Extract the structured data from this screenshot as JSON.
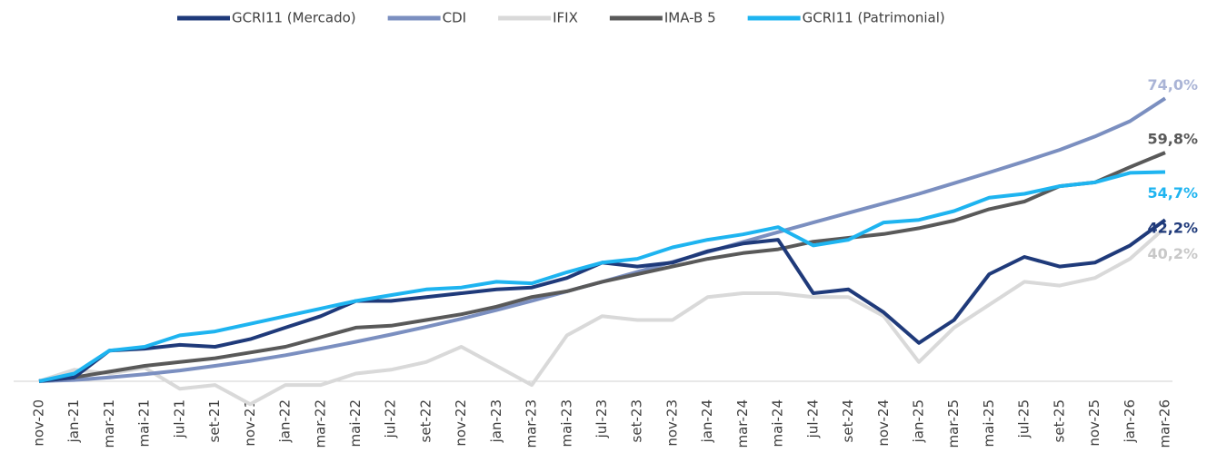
{
  "chart_data": {
    "type": "line",
    "categories": [
      "nov-20",
      "jan-21",
      "mar-21",
      "mai-21",
      "jul-21",
      "set-21",
      "nov-21",
      "jan-22",
      "mar-22",
      "mai-22",
      "jul-22",
      "set-22",
      "nov-22",
      "jan-23",
      "mar-23",
      "mai-23",
      "jul-23",
      "set-23",
      "nov-23",
      "jan-24",
      "mar-24",
      "mai-24",
      "jul-24",
      "set-24",
      "nov-24",
      "jan-25",
      "mar-25",
      "mai-25",
      "jul-25",
      "set-25",
      "nov-25",
      "jan-26",
      "mar-26"
    ],
    "ylim": [
      -10,
      80
    ],
    "legend": "top",
    "series": [
      {
        "name": "GCRI11 (Mercado)",
        "color": "#1f3a7a",
        "end_label": "42,2%",
        "values": [
          0,
          1,
          8,
          8.5,
          9.5,
          9,
          11,
          14,
          17,
          21,
          21,
          22,
          23,
          24,
          24.5,
          27,
          31,
          30,
          31,
          34,
          36,
          37,
          23,
          24,
          18,
          10,
          16,
          28,
          32.5,
          30,
          31,
          35.5,
          42.2
        ]
      },
      {
        "name": "CDI",
        "color": "#7b8fc0",
        "end_label": "74,0%",
        "values": [
          0,
          0.3,
          1,
          1.8,
          2.8,
          4,
          5.3,
          6.8,
          8.5,
          10.3,
          12.2,
          14.2,
          16.3,
          18.6,
          21,
          23.5,
          26,
          28.6,
          31.2,
          33.8,
          36.4,
          39,
          41.5,
          44,
          46.5,
          49,
          51.8,
          54.6,
          57.5,
          60.5,
          64,
          68,
          74
        ]
      },
      {
        "name": "IFIX",
        "color": "#d9d9d9",
        "end_label": "40,2%",
        "values": [
          0,
          3,
          2,
          3.5,
          -2,
          -1,
          -6,
          -1,
          -1,
          2,
          3,
          5,
          9,
          4,
          -1,
          12,
          17,
          16,
          16,
          22,
          23,
          23,
          22,
          22,
          17,
          5,
          14,
          20,
          26,
          25,
          27,
          32,
          40.2
        ]
      },
      {
        "name": "IMA-B 5",
        "color": "#595959",
        "end_label": "59,8%",
        "values": [
          0,
          1,
          2.5,
          4,
          5,
          6,
          7.5,
          9,
          11.5,
          14,
          14.5,
          16,
          17.5,
          19.5,
          22,
          23.5,
          26,
          28,
          30,
          32,
          33.5,
          34.5,
          36.5,
          37.5,
          38.5,
          40,
          42,
          45,
          47,
          51,
          52,
          56,
          59.8
        ]
      },
      {
        "name": "GCRI11 (Patrimonial)",
        "color": "#1eb4f0",
        "end_label": "54,7%",
        "values": [
          0,
          2,
          8,
          9,
          12,
          13,
          15,
          17,
          19,
          21,
          22.5,
          24,
          24.5,
          26,
          25.6,
          28.5,
          31,
          32,
          35,
          37,
          38.4,
          40.3,
          35.5,
          37,
          41.5,
          42.2,
          44.5,
          48,
          49,
          51,
          52,
          54.5,
          54.7
        ]
      }
    ]
  }
}
